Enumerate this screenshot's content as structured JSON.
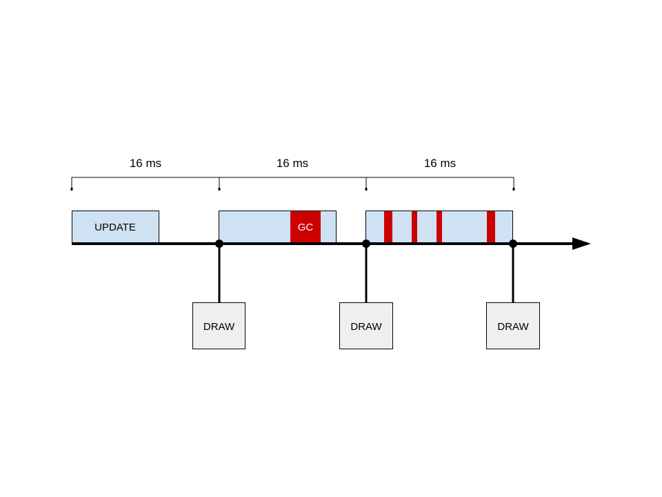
{
  "colors": {
    "frame_fill": "#cfe2f3",
    "gc_red": "#cc0000",
    "draw_fill": "#efefef",
    "line": "#000000",
    "gc_text": "#ffffff"
  },
  "intervals": [
    {
      "label": "16 ms"
    },
    {
      "label": "16 ms"
    },
    {
      "label": "16 ms"
    }
  ],
  "frames": [
    {
      "label": "UPDATE"
    },
    {
      "gc_label": "GC"
    },
    {}
  ],
  "draws": [
    {
      "label": "DRAW"
    },
    {
      "label": "DRAW"
    },
    {
      "label": "DRAW"
    }
  ]
}
